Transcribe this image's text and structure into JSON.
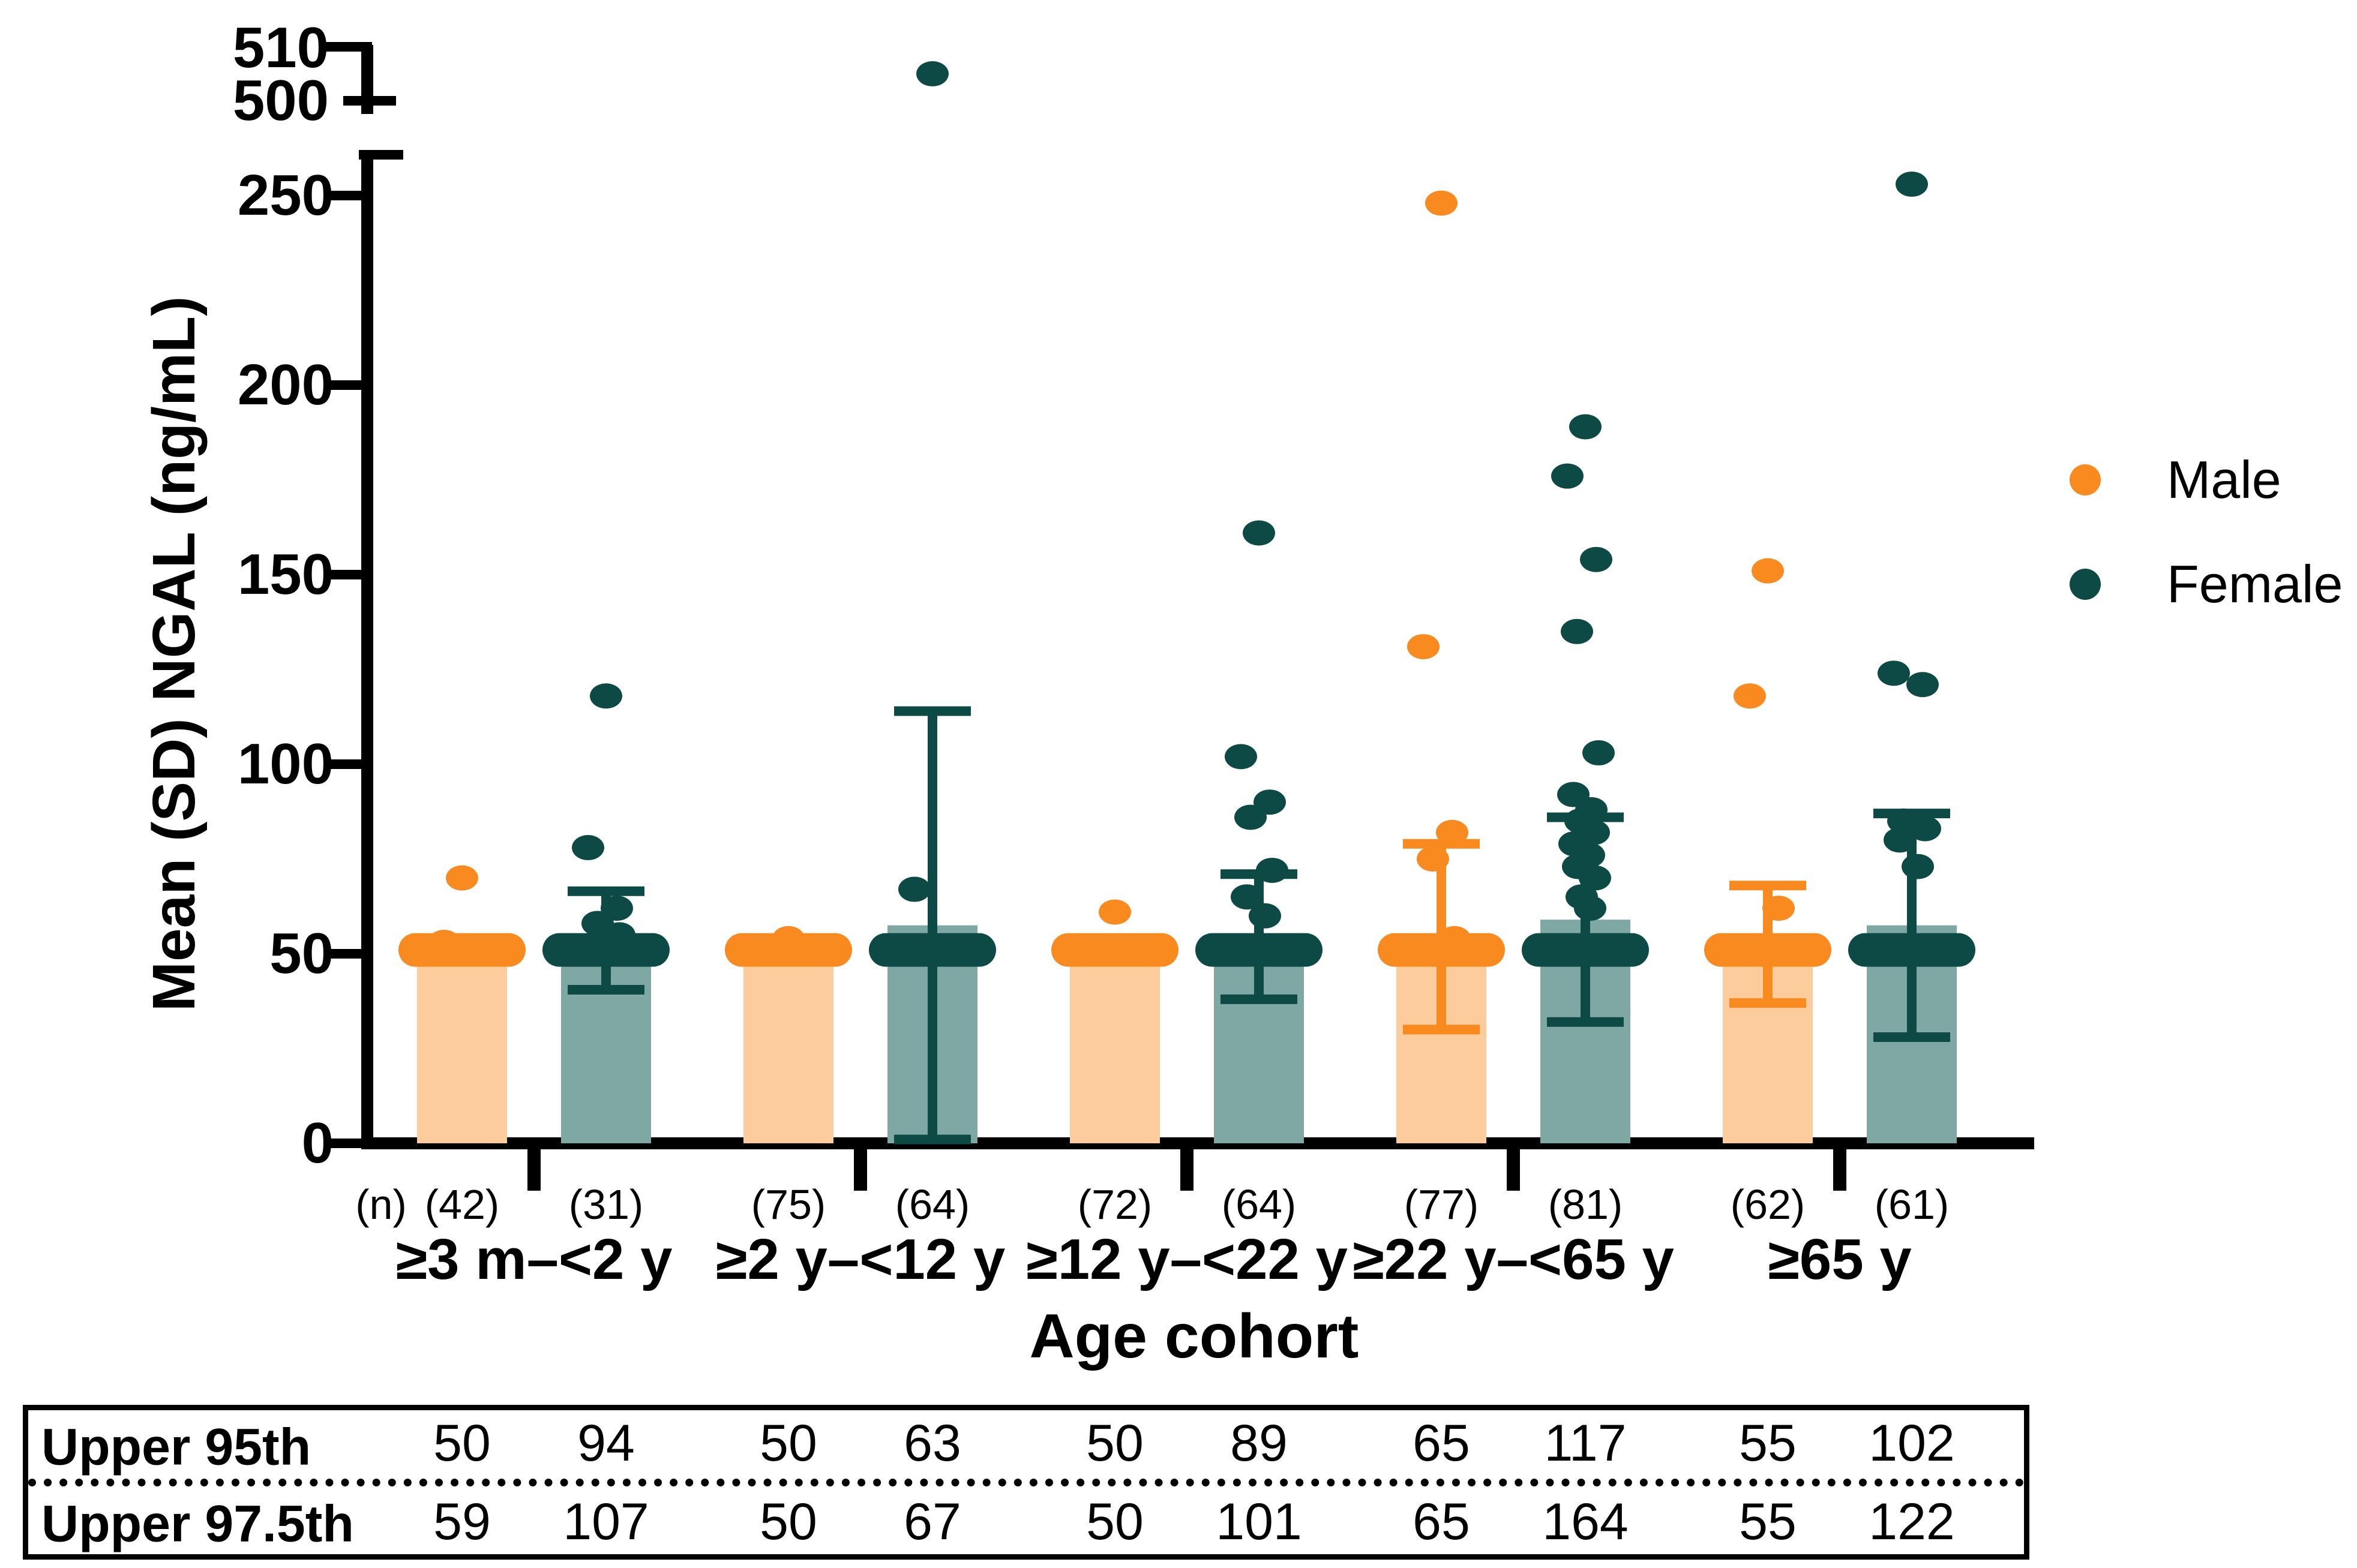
{
  "y_axis": {
    "title": "Mean (SD) NGAL (ng/mL)",
    "ticks": [
      "0",
      "50",
      "100",
      "150",
      "200",
      "250"
    ],
    "break_ticks": [
      "500",
      "510"
    ]
  },
  "x_axis": {
    "title": "Age cohort",
    "n_prefix": "(n)",
    "categories": [
      "≥3 m–<2 y",
      "≥2 y–<12 y",
      "≥12 y–<22 y",
      "≥22 y–<65 y",
      "≥65 y"
    ]
  },
  "legend": {
    "male_label": "Male",
    "female_label": "Female"
  },
  "colors": {
    "male_point": "#F98A20",
    "male_bar": "#FCCC9C",
    "female_point": "#0D4A45",
    "female_bar": "#7FA7A3",
    "axis": "#000000"
  },
  "table": {
    "rows": [
      {
        "label": "Upper 95th",
        "values": [
          "50",
          "94",
          "50",
          "63",
          "50",
          "89",
          "65",
          "117",
          "55",
          "102"
        ]
      },
      {
        "label": "Upper 97.5th",
        "values": [
          "59",
          "107",
          "50",
          "67",
          "50",
          "101",
          "65",
          "164",
          "55",
          "122"
        ]
      }
    ]
  },
  "chart_data": {
    "type": "bar",
    "title": "Mean (SD) NGAL by age cohort and sex, with individual points",
    "xlabel": "Age cohort",
    "ylabel": "Mean (SD) NGAL (ng/mL)",
    "ylim": [
      0,
      260
    ],
    "yticks": [
      0,
      50,
      100,
      150,
      200,
      250
    ],
    "axis_break": {
      "upper_ticks": [
        500,
        510
      ],
      "upper_outlier_value": 505
    },
    "grid": false,
    "legend_position": "right",
    "categories": [
      "≥3 m–<2 y",
      "≥2 y–<12 y",
      "≥12 y–<22 y",
      "≥22 y–<65 y",
      "≥65 y"
    ],
    "series": [
      {
        "name": "Male",
        "n": [
          42,
          75,
          72,
          77,
          62
        ],
        "mean": [
          51,
          50,
          50.5,
          54,
          52
        ],
        "sd_low": [
          null,
          null,
          null,
          30,
          37
        ],
        "sd_high": [
          null,
          null,
          null,
          79,
          68
        ],
        "cluster_at": 50,
        "points": [
          [
            70,
            53,
            52
          ],
          [
            54
          ],
          [
            61
          ],
          [
            248,
            131,
            82,
            75,
            54
          ],
          [
            151,
            118,
            62
          ]
        ]
      },
      {
        "name": "Female",
        "n": [
          31,
          64,
          64,
          81,
          61
        ],
        "mean": [
          53.5,
          57.5,
          54.5,
          59,
          57.5
        ],
        "sd_low": [
          40.5,
          1,
          38,
          32,
          28
        ],
        "sd_high": [
          66.5,
          114,
          71,
          86,
          87
        ],
        "cluster_at": 50,
        "points": [
          [
            118,
            78,
            62,
            58,
            55
          ],
          [
            505,
            67
          ],
          [
            161,
            102,
            90,
            86,
            72,
            65,
            60
          ],
          [
            189,
            176,
            154,
            135,
            103,
            92,
            88,
            85,
            82,
            79,
            76,
            73,
            70,
            65,
            62
          ],
          [
            253,
            124,
            121,
            85,
            83,
            80,
            73
          ]
        ]
      }
    ],
    "percentile_table": {
      "row_labels": [
        "Upper 95th",
        "Upper 97.5th"
      ],
      "upper_95th": [
        50,
        94,
        50,
        63,
        50,
        89,
        65,
        117,
        55,
        102
      ],
      "upper_97_5th": [
        59,
        107,
        50,
        67,
        50,
        101,
        65,
        164,
        55,
        122
      ]
    }
  }
}
